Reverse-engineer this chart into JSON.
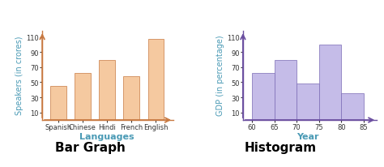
{
  "bar_categories": [
    "Spanish",
    "Chinese",
    "Hindi",
    "French",
    "English"
  ],
  "bar_values": [
    45,
    62,
    80,
    58,
    107
  ],
  "bar_color": "#f5c9a0",
  "bar_edge_color": "#c87941",
  "bar_xlabel": "Languages",
  "bar_ylabel": "Speakers (in crores)",
  "bar_title": "Bar Graph",
  "bar_yticks": [
    10,
    30,
    50,
    70,
    90,
    110
  ],
  "bar_ylim": [
    0,
    120
  ],
  "bar_axis_color": "#c87941",
  "bar_label_color": "#4a9ab5",
  "hist_edges": [
    60,
    65,
    70,
    75,
    80,
    85
  ],
  "hist_values": [
    62,
    80,
    48,
    100,
    35
  ],
  "hist_color": "#c5bce8",
  "hist_edge_color": "#7b6bb5",
  "hist_xlabel": "Year",
  "hist_ylabel": "GDP (in percentage)",
  "hist_title": "Histogram",
  "hist_yticks": [
    10,
    30,
    50,
    70,
    90,
    110
  ],
  "hist_xticks": [
    60,
    65,
    70,
    75,
    80,
    85
  ],
  "hist_ylim": [
    0,
    120
  ],
  "hist_axis_color": "#6b4fa0",
  "hist_label_color": "#4a9ab5",
  "title_color": "#000000",
  "tick_color": "#333333",
  "title_fontsize": 10,
  "label_fontsize": 7,
  "tick_fontsize": 6
}
